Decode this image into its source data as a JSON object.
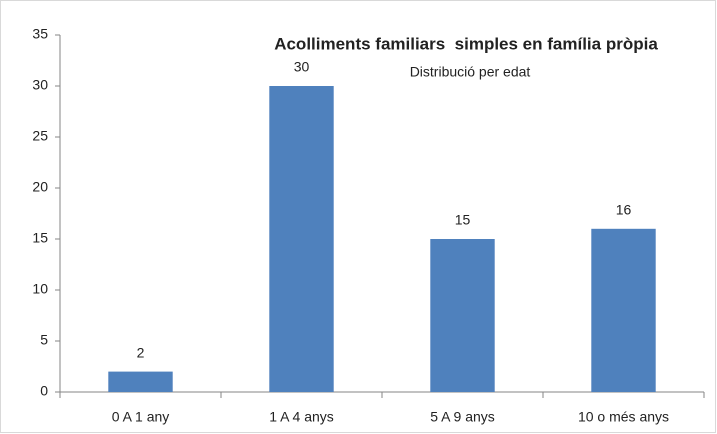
{
  "chart_data": {
    "type": "bar",
    "title": "Acolliments familiars  simples en família pròpia",
    "subtitle": "Distribució per edat",
    "categories": [
      "0 A 1 any",
      "1 A 4 anys",
      "5 A 9 anys",
      "10 o més anys"
    ],
    "values": [
      2,
      30,
      15,
      16
    ],
    "color": "#4f81bd",
    "ylim": [
      0,
      35
    ],
    "yticks": [
      0,
      5,
      10,
      15,
      20,
      25,
      30,
      35
    ],
    "grid": false
  }
}
